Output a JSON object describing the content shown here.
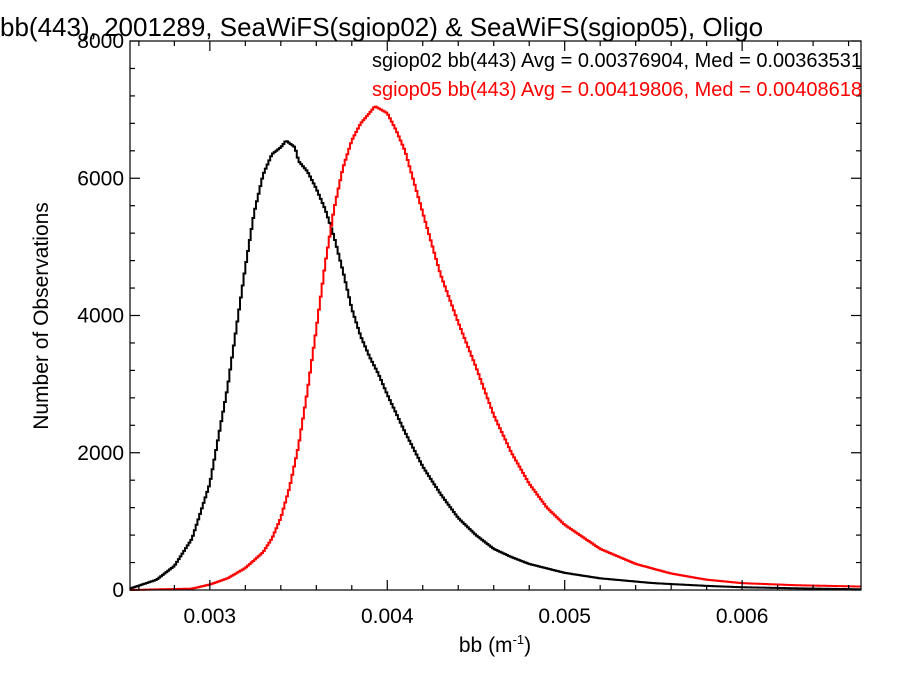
{
  "chart_data": {
    "type": "line",
    "title": "bb(443), 2001289, SeaWiFS(sgiop02) & SeaWiFS(sgiop05), Oligo",
    "xlabel": "bb (m",
    "xlabel_sup": "-1",
    "xlabel_close": ")",
    "ylabel": "Number of Observations",
    "xlim": [
      0.00255,
      0.00667
    ],
    "ylim": [
      0,
      8000
    ],
    "xticks": [
      0.003,
      0.004,
      0.005,
      0.006
    ],
    "xtick_labels": [
      "0.003",
      "0.004",
      "0.005",
      "0.006"
    ],
    "yticks": [
      0,
      2000,
      4000,
      6000,
      8000
    ],
    "ytick_labels": [
      "0",
      "2000",
      "4000",
      "6000",
      "8000"
    ],
    "step_histogram": true,
    "grid": false,
    "legend_position": "top-right",
    "series": [
      {
        "name": "sgiop02 bb(443) Avg = 0.00376904, Med = 0.00363531",
        "color": "#000000",
        "x": [
          0.00255,
          0.0027,
          0.0028,
          0.0029,
          0.003,
          0.0031,
          0.0032,
          0.00325,
          0.0033,
          0.00335,
          0.0034,
          0.00343,
          0.00348,
          0.0035,
          0.00355,
          0.0036,
          0.00365,
          0.0037,
          0.00375,
          0.0038,
          0.00385,
          0.0039,
          0.00395,
          0.004,
          0.0041,
          0.0042,
          0.0043,
          0.0044,
          0.0045,
          0.0046,
          0.0047,
          0.0048,
          0.005,
          0.0052,
          0.0055,
          0.0058,
          0.006,
          0.0063,
          0.00667
        ],
        "values": [
          20,
          150,
          350,
          750,
          1550,
          2950,
          4700,
          5500,
          6050,
          6350,
          6450,
          6550,
          6450,
          6250,
          6100,
          5850,
          5550,
          5150,
          4650,
          4100,
          3700,
          3400,
          3150,
          2850,
          2300,
          1800,
          1400,
          1050,
          800,
          600,
          480,
          380,
          250,
          170,
          100,
          60,
          40,
          25,
          10
        ]
      },
      {
        "name": "sgiop05 bb(443) Avg = 0.00419806, Med = 0.00408618",
        "color": "#ff0000",
        "x": [
          0.00255,
          0.0029,
          0.003,
          0.0031,
          0.0032,
          0.0033,
          0.00335,
          0.0034,
          0.00345,
          0.0035,
          0.00355,
          0.0036,
          0.00365,
          0.0037,
          0.00375,
          0.0038,
          0.00385,
          0.0039,
          0.00393,
          0.004,
          0.00405,
          0.0041,
          0.00415,
          0.0042,
          0.0043,
          0.0044,
          0.0045,
          0.0046,
          0.0047,
          0.0048,
          0.0049,
          0.005,
          0.0052,
          0.0054,
          0.0056,
          0.0058,
          0.006,
          0.0063,
          0.00667
        ],
        "values": [
          0,
          20,
          80,
          170,
          320,
          550,
          750,
          1050,
          1500,
          2100,
          2900,
          3800,
          4750,
          5550,
          6150,
          6550,
          6800,
          6950,
          7050,
          6950,
          6700,
          6400,
          5950,
          5500,
          4600,
          3900,
          3250,
          2550,
          2000,
          1550,
          1200,
          950,
          600,
          380,
          240,
          150,
          100,
          70,
          50
        ]
      }
    ]
  }
}
